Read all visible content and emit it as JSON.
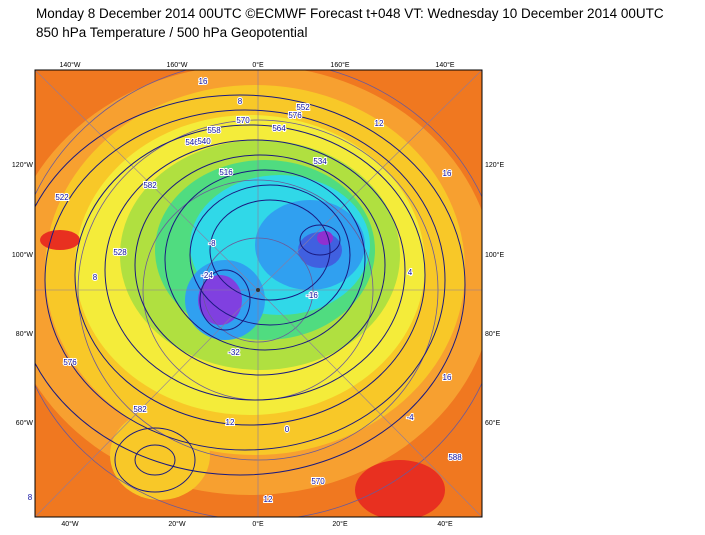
{
  "header": {
    "title": "Monday 8 December 2014 00UTC ©ECMWF Forecast t+048 VT: Wednesday 10 December 2014 00UTC",
    "subtitle": "850 hPa Temperature / 500 hPa Geopotential"
  },
  "map": {
    "top_labels": [
      "140°W",
      "160°W",
      "0°E",
      "160°E",
      "140°E"
    ],
    "bottom_labels": [
      "40°W",
      "20°W",
      "0°E",
      "20°E",
      "40°E"
    ],
    "left_labels": [
      "120°W",
      "100°W",
      "80°W",
      "60°W"
    ],
    "right_labels": [
      "120°E",
      "100°E",
      "80°E",
      "60°E"
    ],
    "contour_labels": [
      "16",
      "8",
      "552",
      "576",
      "564",
      "570",
      "558",
      "546",
      "540",
      "516",
      "534",
      "12",
      "16",
      "8",
      "4",
      "-8",
      "-16",
      "-24",
      "-32",
      "0",
      "528",
      "522",
      "582",
      "12",
      "-4",
      "570",
      "576",
      "16",
      "8",
      "12",
      "582",
      "588"
    ]
  }
}
